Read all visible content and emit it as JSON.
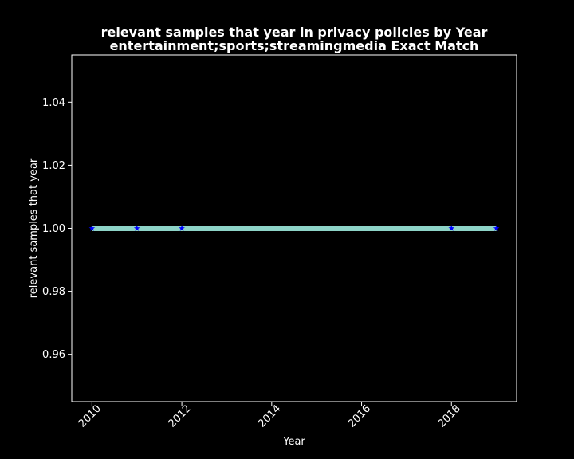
{
  "chart_data": {
    "type": "line",
    "title": "relevant samples that year in privacy policies by Year",
    "subtitle": "entertainment;sports;streamingmedia Exact Match",
    "xlabel": "Year",
    "ylabel": "relevant samples that year",
    "x": [
      2010,
      2011,
      2012,
      2018,
      2019
    ],
    "series": [
      {
        "values": [
          1.0,
          1.0,
          1.0,
          1.0,
          1.0
        ]
      }
    ],
    "xlim": [
      2009.55,
      2019.45
    ],
    "ylim": [
      0.945,
      1.055
    ],
    "xticks": [
      2010,
      2012,
      2014,
      2016,
      2018
    ],
    "xtick_labels": [
      "2010",
      "2012",
      "2014",
      "2016",
      "2018"
    ],
    "yticks": [
      0.96,
      0.98,
      1.0,
      1.02,
      1.04
    ],
    "ytick_labels": [
      "0.96",
      "0.98",
      "1.00",
      "1.02",
      "1.04"
    ],
    "grid": false,
    "legend": "none",
    "colors": {
      "background": "#000000",
      "line": "#8dd3c7",
      "marker": "#0000ff",
      "text": "#ffffff",
      "axes": "#ffffff"
    }
  }
}
